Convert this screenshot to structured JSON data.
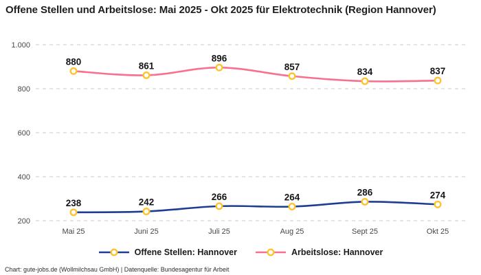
{
  "header": {
    "title": "Offene Stellen und Arbeitslose: Mai 2025 - Okt 2025 für Elektrotechnik (Region Hannover)"
  },
  "chart_data": {
    "type": "line",
    "title": "Offene Stellen und Arbeitslose: Mai 2025 - Okt 2025 für Elektrotechnik (Region Hannover)",
    "categories": [
      "Mai 25",
      "Juni 25",
      "Juli 25",
      "Aug 25",
      "Sept 25",
      "Okt 25"
    ],
    "series": [
      {
        "name": "Offene Stellen: Hannover",
        "values": [
          238,
          242,
          266,
          264,
          286,
          274
        ],
        "line_color": "#1e3c94",
        "marker_color": "#fdc42f"
      },
      {
        "name": "Arbeitslose: Hannover",
        "values": [
          880,
          861,
          896,
          857,
          834,
          837
        ],
        "line_color": "#f8708d",
        "marker_color": "#fdc42f"
      }
    ],
    "y_axis": {
      "tick_values": [
        1000,
        800,
        600,
        400,
        200
      ],
      "tick_labels": [
        "1.000",
        "800",
        "600",
        "400",
        "200"
      ],
      "ylim": [
        200,
        1000
      ]
    },
    "xlabel": "",
    "ylabel": "",
    "grid": "horizontal dashed",
    "legend_position": "bottom",
    "point_labels_visible": true
  },
  "colors": {
    "grid": "#c9c9cd",
    "axis_text": "#45454c",
    "point_label_text": "#141419",
    "background": "#ffffff"
  },
  "footer": {
    "credit": "Chart: gute-jobs.de (Wollmilchsau GmbH) | Datenquelle: Bundesagentur für Arbeit"
  }
}
